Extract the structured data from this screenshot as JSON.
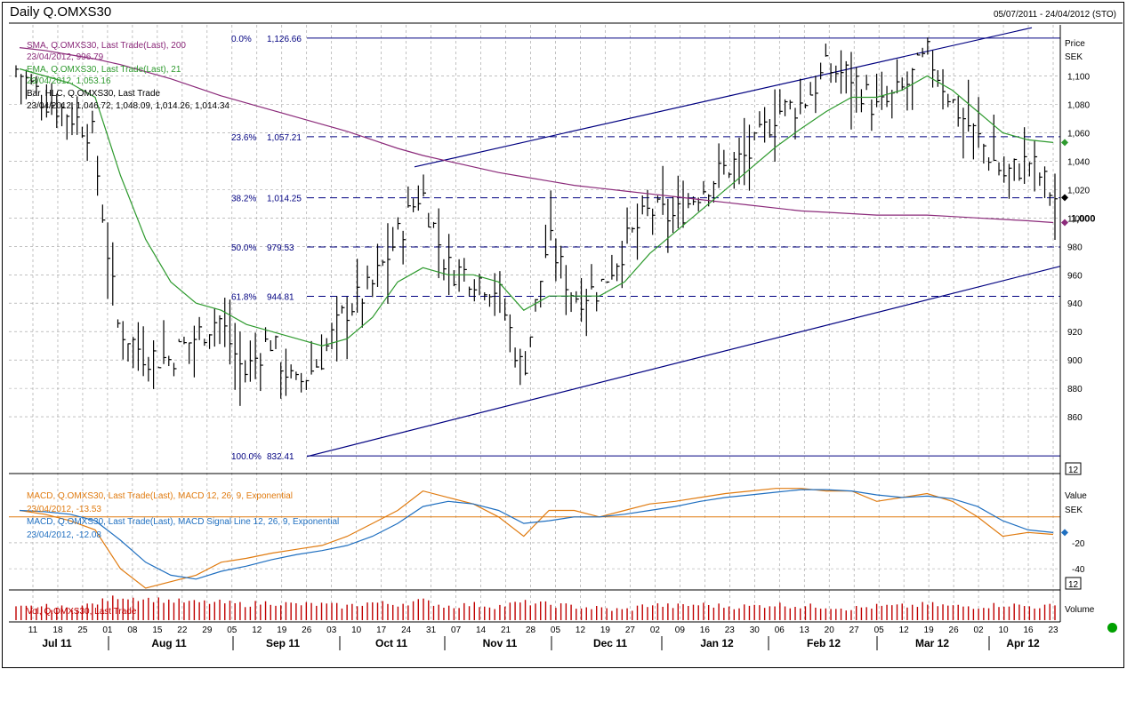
{
  "header": {
    "title": "Daily Q.OMXS30",
    "date_range": "05/07/2011 - 24/04/2012 (STO)"
  },
  "colors": {
    "price_bar": "#000000",
    "sma": "#8b2a7a",
    "ema": "#2e9a2e",
    "trend_line": "#000080",
    "fib_line": "#000080",
    "macd": "#e07b10",
    "signal": "#1f6fc0",
    "zero_line": "#e07b10",
    "volume": "#c00000",
    "grid": "#9a9a9a"
  },
  "legend": {
    "sma_label": "SMA, Q.OMXS30, Last Trade(Last), 200",
    "sma_value": "23/04/2012, 996.79",
    "ema_label": "EMA, Q.OMXS30, Last Trade(Last), 21",
    "ema_value": "23/04/2012, 1,053.16",
    "bar_label": "Bar, HLC, Q.OMXS30, Last Trade",
    "bar_value": "23/04/2012, 1,046.72, 1,048.09, 1,014.26, 1,014.34",
    "macd_label": "MACD, Q.OMXS30, Last Trade(Last), MACD 12, 26, 9, Exponential",
    "macd_value": "23/04/2012, -13.53",
    "signal_label": "MACD, Q.OMXS30, Last Trade(Last), MACD Signal Line 12, 26, 9, Exponential",
    "signal_value": "23/04/2012, -12.08",
    "vol_label": "Vol, Q.OMXS30, Last Trade"
  },
  "axis": {
    "price_title": "Price",
    "price_unit": "SEK",
    "price_ticks": [
      "1,100",
      "1,080",
      "1,060",
      "1,040",
      "1,020",
      "1,000",
      "980",
      "960",
      "940",
      "920",
      "900",
      "880",
      "860"
    ],
    "price_tick_values": [
      1100,
      1080,
      1060,
      1040,
      1020,
      1000,
      980,
      960,
      940,
      920,
      900,
      880,
      860
    ],
    "price_badge": "12",
    "macd_title": "Value",
    "macd_unit": "SEK",
    "macd_ticks": [
      "-20",
      "-40"
    ],
    "macd_badge": "12",
    "volume_title": "Volume",
    "day_ticks": [
      "11",
      "18",
      "25",
      "01",
      "08",
      "15",
      "22",
      "29",
      "05",
      "12",
      "19",
      "26",
      "03",
      "10",
      "17",
      "24",
      "31",
      "07",
      "14",
      "21",
      "28",
      "05",
      "12",
      "19",
      "27",
      "02",
      "09",
      "16",
      "23",
      "30",
      "06",
      "13",
      "20",
      "27",
      "05",
      "12",
      "19",
      "26",
      "02",
      "10",
      "16",
      "23"
    ],
    "months": [
      "Jul 11",
      "Aug 11",
      "Sep 11",
      "Oct 11",
      "Nov 11",
      "Dec 11",
      "Jan 12",
      "Feb 12",
      "Mar 12",
      "Apr 12"
    ]
  },
  "fibonacci": [
    {
      "pct": "0.0%",
      "value": "1,126.66",
      "level": 1126.66
    },
    {
      "pct": "23.6%",
      "value": "1,057.21",
      "level": 1057.21
    },
    {
      "pct": "38.2%",
      "value": "1,014.25",
      "level": 1014.25
    },
    {
      "pct": "50.0%",
      "value": "979.53",
      "level": 979.53
    },
    {
      "pct": "61.8%",
      "value": "944.81",
      "level": 944.81
    },
    {
      "pct": "100.0%",
      "value": "832.41",
      "level": 832.41
    }
  ],
  "chart_data": {
    "type": "line",
    "title": "Daily Q.OMXS30",
    "ylabel": "Price",
    "ylim": [
      832,
      1126
    ],
    "x": [
      "11 Jul",
      "18 Jul",
      "25 Jul",
      "01 Aug",
      "08 Aug",
      "15 Aug",
      "22 Aug",
      "29 Aug",
      "05 Sep",
      "12 Sep",
      "19 Sep",
      "26 Sep",
      "03 Oct",
      "10 Oct",
      "17 Oct",
      "24 Oct",
      "31 Oct",
      "07 Nov",
      "14 Nov",
      "21 Nov",
      "28 Nov",
      "05 Dec",
      "12 Dec",
      "19 Dec",
      "27 Dec",
      "02 Jan",
      "09 Jan",
      "16 Jan",
      "23 Jan",
      "30 Jan",
      "06 Feb",
      "13 Feb",
      "20 Feb",
      "27 Feb",
      "05 Mar",
      "12 Mar",
      "19 Mar",
      "26 Mar",
      "02 Apr",
      "10 Apr",
      "16 Apr",
      "23 Apr"
    ],
    "series": [
      {
        "name": "Bar, HLC, Q.OMXS30, Last Trade",
        "values": [
          1105,
          1085,
          1075,
          1060,
          925,
          905,
          900,
          915,
          930,
          890,
          915,
          880,
          900,
          935,
          950,
          985,
          1020,
          965,
          960,
          950,
          890,
          985,
          945,
          950,
          980,
          1005,
          1000,
          1020,
          1035,
          1045,
          1075,
          1080,
          1105,
          1100,
          1075,
          1090,
          1115,
          1080,
          1055,
          1030,
          1040,
          1014
        ]
      },
      {
        "name": "SMA, Q.OMXS30, Last Trade(Last), 200",
        "values": [
          1120,
          1118,
          1115,
          1112,
          1108,
          1103,
          1098,
          1092,
          1086,
          1081,
          1076,
          1071,
          1066,
          1061,
          1055,
          1049,
          1044,
          1040,
          1036,
          1032,
          1029,
          1026,
          1023,
          1021,
          1019,
          1017,
          1015,
          1013,
          1011,
          1009,
          1007,
          1005,
          1004,
          1003,
          1002,
          1002,
          1002,
          1001,
          1000,
          999,
          998,
          996.79
        ]
      },
      {
        "name": "EMA, Q.OMXS30, Last Trade(Last), 21",
        "values": [
          1105,
          1100,
          1095,
          1085,
          1030,
          985,
          955,
          940,
          935,
          925,
          920,
          915,
          910,
          915,
          930,
          955,
          965,
          960,
          960,
          955,
          935,
          945,
          945,
          945,
          955,
          975,
          990,
          1005,
          1020,
          1035,
          1050,
          1063,
          1075,
          1085,
          1085,
          1090,
          1100,
          1090,
          1075,
          1060,
          1055,
          1053.16
        ]
      }
    ],
    "macd": {
      "x": [
        "11 Jul",
        "18 Jul",
        "25 Jul",
        "01 Aug",
        "08 Aug",
        "15 Aug",
        "22 Aug",
        "29 Aug",
        "05 Sep",
        "12 Sep",
        "19 Sep",
        "26 Sep",
        "03 Oct",
        "10 Oct",
        "17 Oct",
        "24 Oct",
        "31 Oct",
        "07 Nov",
        "14 Nov",
        "21 Nov",
        "28 Nov",
        "05 Dec",
        "12 Dec",
        "19 Dec",
        "27 Dec",
        "02 Jan",
        "09 Jan",
        "16 Jan",
        "23 Jan",
        "30 Jan",
        "06 Feb",
        "13 Feb",
        "20 Feb",
        "27 Feb",
        "05 Mar",
        "12 Mar",
        "19 Mar",
        "26 Mar",
        "02 Apr",
        "10 Apr",
        "16 Apr",
        "23 Apr"
      ],
      "macd_values": [
        5,
        2,
        -3,
        -10,
        -40,
        -55,
        -50,
        -45,
        -35,
        -32,
        -28,
        -25,
        -22,
        -15,
        -5,
        5,
        20,
        15,
        10,
        0,
        -15,
        5,
        5,
        0,
        5,
        10,
        12,
        15,
        18,
        20,
        22,
        22,
        20,
        20,
        12,
        15,
        18,
        12,
        0,
        -15,
        -12,
        -13.53
      ],
      "signal_values": [
        5,
        4,
        2,
        -3,
        -18,
        -35,
        -45,
        -48,
        -42,
        -38,
        -33,
        -29,
        -26,
        -22,
        -15,
        -5,
        8,
        12,
        10,
        5,
        -5,
        -3,
        0,
        0,
        2,
        5,
        8,
        12,
        15,
        17,
        19,
        21,
        21,
        20,
        17,
        15,
        16,
        14,
        8,
        -3,
        -10,
        -12.08
      ],
      "ylim": [
        -55,
        30
      ]
    },
    "volume": {
      "values": [
        6,
        7,
        6,
        8,
        12,
        11,
        10,
        9,
        9,
        8,
        9,
        8,
        8,
        7,
        9,
        8,
        10,
        7,
        8,
        7,
        9,
        8,
        7,
        6,
        5,
        8,
        7,
        8,
        7,
        7,
        8,
        7,
        7,
        6,
        7,
        7,
        8,
        7,
        7,
        8,
        7,
        7
      ]
    }
  }
}
